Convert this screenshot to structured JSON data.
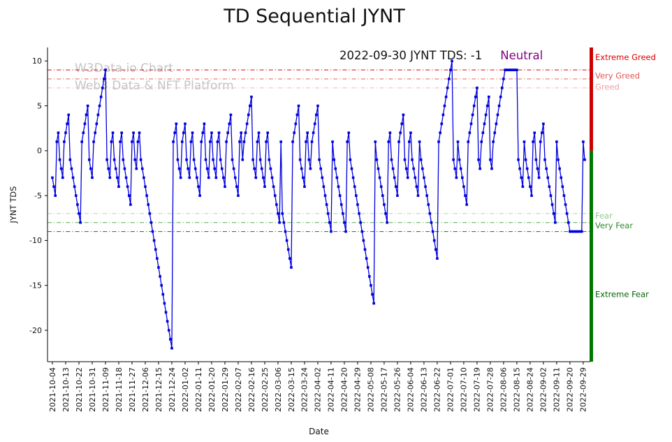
{
  "title": "TD Sequential JYNT",
  "annotation": {
    "date_text": "2022-09-30 JYNT TDS: -1",
    "status": "Neutral",
    "status_color": "#800080"
  },
  "watermark": {
    "line1": "W3Data.io Chart",
    "line2": "Web3 Data & NFT Platform"
  },
  "chart_data": {
    "type": "line",
    "title": "TD Sequential JYNT",
    "xlabel": "Date",
    "ylabel": "JYNT TDS",
    "ylim": [
      -23.5,
      11.5
    ],
    "yticks": [
      10,
      5,
      0,
      -5,
      -10,
      -15,
      -20
    ],
    "grid": false,
    "legend": "none",
    "series_name": "JYNT TDS",
    "series_color": "#0000dd",
    "marker": "square",
    "start_date": "2021-10-04",
    "end_date": "2022-09-30",
    "xtick_step_days": 9,
    "xtick_labels": [
      "2021-10-04",
      "2021-10-13",
      "2021-10-22",
      "2021-10-31",
      "2021-11-09",
      "2021-11-18",
      "2021-11-27",
      "2021-12-06",
      "2021-12-15",
      "2021-12-24",
      "2022-01-02",
      "2022-01-11",
      "2022-01-20",
      "2022-01-29",
      "2022-02-07",
      "2022-02-16",
      "2022-02-25",
      "2022-03-06",
      "2022-03-15",
      "2022-03-24",
      "2022-04-02",
      "2022-04-11",
      "2022-04-20",
      "2022-04-29",
      "2022-05-08",
      "2022-05-17",
      "2022-05-26",
      "2022-06-04",
      "2022-06-13",
      "2022-06-22",
      "2022-07-01",
      "2022-07-10",
      "2022-07-19",
      "2022-07-28",
      "2022-08-06",
      "2022-08-15",
      "2022-08-24",
      "2022-09-02",
      "2022-09-11",
      "2022-09-20",
      "2022-09-29"
    ],
    "values": [
      -3,
      -4,
      -5,
      1,
      2,
      -1,
      -2,
      -3,
      1,
      2,
      3,
      4,
      -1,
      -2,
      -3,
      -4,
      -5,
      -6,
      -7,
      -8,
      1,
      2,
      3,
      4,
      5,
      -1,
      -2,
      -3,
      1,
      2,
      3,
      4,
      5,
      6,
      7,
      8,
      9,
      -1,
      -2,
      -3,
      1,
      2,
      -1,
      -2,
      -3,
      -4,
      1,
      2,
      -1,
      -2,
      -3,
      -4,
      -5,
      -6,
      1,
      2,
      -1,
      -2,
      1,
      2,
      -1,
      -2,
      -3,
      -4,
      -5,
      -6,
      -7,
      -8,
      -9,
      -10,
      -11,
      -12,
      -13,
      -14,
      -15,
      -16,
      -17,
      -18,
      -19,
      -20,
      -21,
      -22,
      1,
      2,
      3,
      -1,
      -2,
      -3,
      1,
      2,
      3,
      -1,
      -2,
      -3,
      1,
      2,
      -1,
      -2,
      -3,
      -4,
      -5,
      1,
      2,
      3,
      -1,
      -2,
      -3,
      1,
      2,
      -1,
      -2,
      -3,
      1,
      2,
      -1,
      -2,
      -3,
      -4,
      1,
      2,
      3,
      4,
      -1,
      -2,
      -3,
      -4,
      -5,
      1,
      2,
      -1,
      1,
      2,
      3,
      4,
      5,
      6,
      -1,
      -2,
      -3,
      1,
      2,
      -1,
      -2,
      -3,
      -4,
      1,
      2,
      -1,
      -2,
      -3,
      -4,
      -5,
      -6,
      -7,
      -8,
      1,
      -7,
      -8,
      -9,
      -10,
      -11,
      -12,
      -13,
      1,
      2,
      3,
      4,
      5,
      -1,
      -2,
      -3,
      -4,
      1,
      2,
      -1,
      -2,
      1,
      2,
      3,
      4,
      5,
      -1,
      -2,
      -3,
      -4,
      -5,
      -6,
      -7,
      -8,
      -9,
      1,
      -1,
      -2,
      -3,
      -4,
      -5,
      -6,
      -7,
      -8,
      -9,
      1,
      2,
      -1,
      -2,
      -3,
      -4,
      -5,
      -6,
      -7,
      -8,
      -9,
      -10,
      -11,
      -12,
      -13,
      -14,
      -15,
      -16,
      -17,
      1,
      -1,
      -2,
      -3,
      -4,
      -5,
      -6,
      -7,
      -8,
      1,
      2,
      -1,
      -2,
      -3,
      -4,
      -5,
      1,
      2,
      3,
      4,
      -1,
      -2,
      -3,
      1,
      2,
      -1,
      -2,
      -3,
      -4,
      -5,
      1,
      -1,
      -2,
      -3,
      -4,
      -5,
      -6,
      -7,
      -8,
      -9,
      -10,
      -11,
      -12,
      1,
      2,
      3,
      4,
      5,
      6,
      7,
      8,
      9,
      10,
      -1,
      -2,
      -3,
      1,
      -1,
      -2,
      -3,
      -4,
      -5,
      -6,
      1,
      2,
      3,
      4,
      5,
      6,
      7,
      -1,
      -2,
      1,
      2,
      3,
      4,
      5,
      6,
      -1,
      -2,
      1,
      2,
      3,
      4,
      5,
      6,
      7,
      8,
      9,
      9,
      9,
      9,
      9,
      9,
      9,
      9,
      9,
      -1,
      -2,
      -3,
      -4,
      1,
      -1,
      -2,
      -3,
      -4,
      -5,
      1,
      2,
      -1,
      -2,
      -3,
      1,
      2,
      3,
      -1,
      -2,
      -3,
      -4,
      -5,
      -6,
      -7,
      -8,
      1,
      -1,
      -2,
      -3,
      -4,
      -5,
      -6,
      -7,
      -8,
      -9,
      -9,
      -9,
      -9,
      -9,
      -9,
      -9,
      -9,
      -9,
      1,
      -1
    ],
    "thresholds": [
      {
        "label": "Extreme Greed",
        "y": 9,
        "label_y": 10.4,
        "color": "#dd0000",
        "line_color": "#dd0000"
      },
      {
        "label": "Very Greed",
        "y": 8,
        "label_y": 8.35,
        "color": "#e05555",
        "line_color": "#e06060"
      },
      {
        "label": "Greed",
        "y": 7,
        "label_y": 7.1,
        "color": "#f0a0a8",
        "line_color": "#f3b0b6"
      },
      {
        "label": "Fear",
        "y": -7,
        "label_y": -7.25,
        "color": "#8fcc8f",
        "line_color": "#a9d8a9"
      },
      {
        "label": "Very Fear",
        "y": -8,
        "label_y": -8.35,
        "color": "#2e8b2e",
        "line_color": "#55aa55"
      },
      {
        "label": "Extreme Fear",
        "y": -9,
        "label_y": -16.0,
        "color": "#006400",
        "line_color": "#117711"
      }
    ],
    "right_bar": {
      "top_color": "#cc0000",
      "bottom_color": "#007700",
      "split_y": 0
    }
  }
}
